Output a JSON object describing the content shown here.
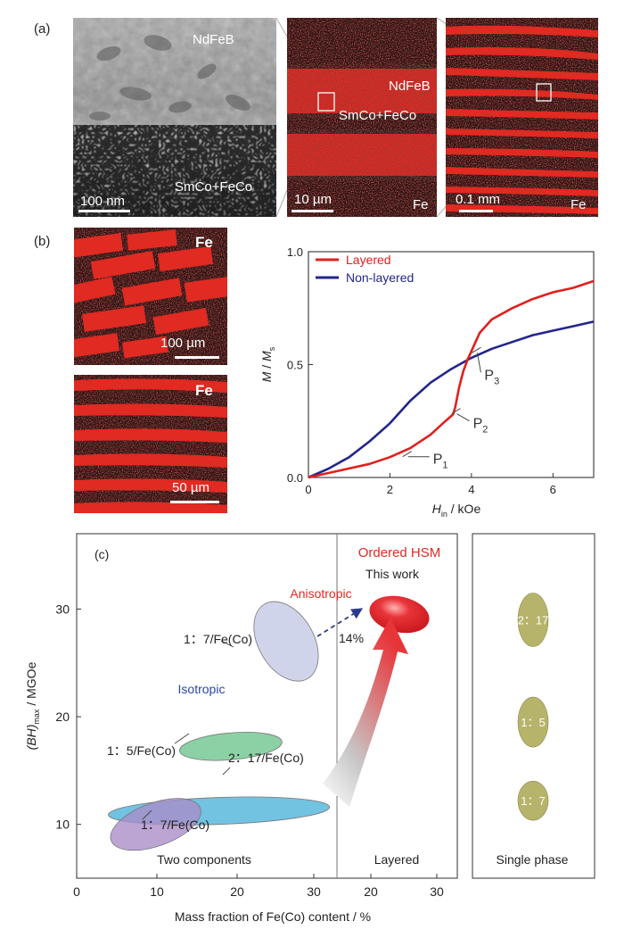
{
  "panel_a": {
    "label": "(a)",
    "tem": {
      "top_label": "NdFeB",
      "bottom_label": "SmCo+FeCo",
      "scale": "100 nm"
    },
    "map1": {
      "label1": "NdFeB",
      "label2": "SmCo+FeCo",
      "element": "Fe",
      "scale": "10 µm"
    },
    "map2": {
      "element": "Fe",
      "scale": "0.1 mm"
    }
  },
  "panel_b": {
    "label": "(b)",
    "map_top": {
      "element": "Fe",
      "scale": "100 µm"
    },
    "map_bottom": {
      "element": "Fe",
      "scale": "50 µm"
    }
  },
  "panel_c": {
    "label": "(c)"
  },
  "chart_data": [
    {
      "type": "line",
      "ylabel_main": "M",
      "ylabel_sub": "s",
      "ylabel_text": "M / M",
      "xlabel_main": "H",
      "xlabel_sub": "in",
      "xlabel_unit": " / kOe",
      "xlim": [
        0,
        7
      ],
      "ylim": [
        0,
        1.0
      ],
      "xticks": [
        "0",
        "2",
        "4",
        "6"
      ],
      "yticks": [
        "0.0",
        "0.5",
        "1.0"
      ],
      "legend_position": "top-left",
      "colors": {
        "Layered": "#e0201e",
        "Non-layered": "#23258c"
      },
      "series": [
        {
          "name": "Layered",
          "x": [
            0,
            0.5,
            1.0,
            1.5,
            2.0,
            2.5,
            3.0,
            3.3,
            3.55,
            3.6,
            3.7,
            3.8,
            3.9,
            4.0,
            4.2,
            4.5,
            5.0,
            5.5,
            6.0,
            6.5,
            7.0
          ],
          "y": [
            0,
            0.02,
            0.04,
            0.06,
            0.09,
            0.13,
            0.19,
            0.24,
            0.28,
            0.31,
            0.4,
            0.47,
            0.52,
            0.56,
            0.64,
            0.7,
            0.75,
            0.79,
            0.82,
            0.84,
            0.87
          ]
        },
        {
          "name": "Non-layered",
          "x": [
            0,
            0.5,
            1.0,
            1.5,
            2.0,
            2.5,
            3.0,
            3.5,
            4.0,
            4.5,
            5.0,
            5.5,
            6.0,
            6.5,
            7.0
          ],
          "y": [
            0,
            0.04,
            0.09,
            0.16,
            0.24,
            0.34,
            0.42,
            0.48,
            0.53,
            0.57,
            0.6,
            0.63,
            0.65,
            0.67,
            0.69
          ]
        }
      ],
      "annotations": [
        {
          "label": "P",
          "sub": "1",
          "x": 2.4,
          "y": 0.1
        },
        {
          "label": "P",
          "sub": "2",
          "x": 3.6,
          "y": 0.29
        },
        {
          "label": "P",
          "sub": "3",
          "x": 4.1,
          "y": 0.56
        }
      ]
    },
    {
      "type": "scatter",
      "ylabel_main": "(BH)",
      "ylabel_sub": "max",
      "ylabel_unit": " / MGOe",
      "xlabel": "Mass fraction of Fe(Co) content / %",
      "ylim": [
        5,
        37
      ],
      "yticks": [
        10,
        20,
        30
      ],
      "sections": [
        {
          "name": "Two components",
          "xticks": [
            "0",
            "10",
            "20",
            "30"
          ],
          "xlim": [
            0,
            34
          ]
        },
        {
          "name": "Layered",
          "xticks": [
            "20",
            "30"
          ],
          "xlim": [
            10,
            34
          ]
        },
        {
          "name": "Single phase",
          "xticks": []
        }
      ],
      "region_labels": {
        "ordered": "Ordered HSM",
        "this_work": "This work",
        "anisotropic": "Anisotropic",
        "isotropic": "Isotropic",
        "improvement": "14%"
      },
      "regions": [
        {
          "label": "1：7/Fe(Co)",
          "x": [
            23,
            30
          ],
          "y": [
            23,
            31
          ],
          "color": "#c3c8e6"
        },
        {
          "label": "1：5/Fe(Co)",
          "x": [
            13,
            26
          ],
          "y": [
            16,
            18.5
          ],
          "color": "#6cc48c"
        },
        {
          "label": "2：17/Fe(Co)",
          "x": [
            4,
            32
          ],
          "y": [
            10,
            12.5
          ],
          "color": "#4ab2d8"
        },
        {
          "label": "1：7/Fe(Co)",
          "x": [
            4,
            16
          ],
          "y": [
            8,
            12
          ],
          "color": "#a98cc6"
        },
        {
          "label": "This work",
          "x": [
            18,
            28
          ],
          "y": [
            28,
            32
          ],
          "color": "#e8353a"
        }
      ],
      "single_phase": [
        {
          "label": "2：17",
          "y": 29
        },
        {
          "label": "1：5",
          "y": 19.5
        },
        {
          "label": "1：7",
          "y": 12.2
        }
      ],
      "single_phase_color": "#b6b46a"
    }
  ]
}
